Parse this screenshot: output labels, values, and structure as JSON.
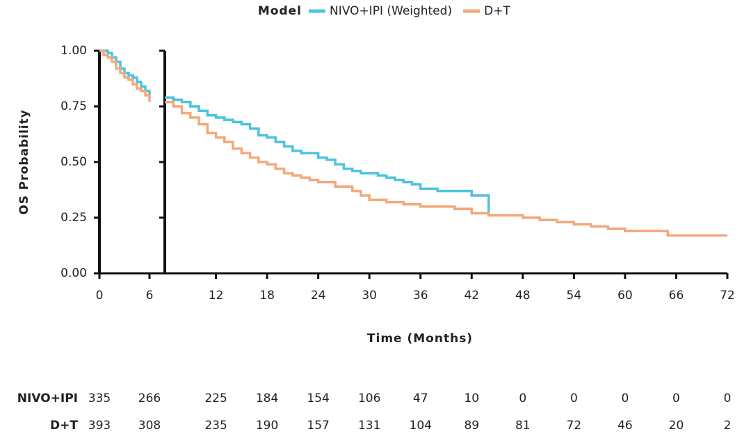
{
  "chart_data": {
    "type": "step",
    "legend_title": "Model",
    "x_label": "Time (Months)",
    "y_label": "OS Probability",
    "xlim_panels": [
      [
        0,
        6
      ],
      [
        6,
        72
      ]
    ],
    "xticks": [
      0,
      6,
      12,
      18,
      24,
      30,
      36,
      42,
      48,
      54,
      60,
      66,
      72
    ],
    "ylim": [
      0,
      1
    ],
    "yticks": [
      {
        "value": 0,
        "label": "0.00"
      },
      {
        "value": 0.25,
        "label": "0.25"
      },
      {
        "value": 0.5,
        "label": "0.50"
      },
      {
        "value": 0.75,
        "label": "0.75"
      },
      {
        "value": 1,
        "label": "1.00"
      }
    ],
    "series": [
      {
        "name": "NIVO+IPI (Weighted)",
        "color": "#4ec3df",
        "x": [
          0,
          0.5,
          1,
          1.5,
          2,
          2.5,
          3,
          3.5,
          4,
          4.5,
          5,
          5.5,
          6,
          7,
          8,
          9,
          10,
          11,
          12,
          13,
          14,
          15,
          16,
          17,
          18,
          19,
          20,
          21,
          22,
          24,
          25,
          26,
          27,
          28,
          29,
          31,
          32,
          33,
          34,
          35,
          36,
          38,
          42,
          44,
          48
        ],
        "values": [
          1.0,
          1.0,
          0.99,
          0.97,
          0.95,
          0.92,
          0.9,
          0.89,
          0.88,
          0.86,
          0.84,
          0.82,
          0.79,
          0.78,
          0.77,
          0.75,
          0.73,
          0.71,
          0.7,
          0.69,
          0.68,
          0.67,
          0.65,
          0.62,
          0.61,
          0.59,
          0.57,
          0.55,
          0.54,
          0.52,
          0.51,
          0.49,
          0.47,
          0.46,
          0.45,
          0.44,
          0.43,
          0.42,
          0.41,
          0.4,
          0.38,
          0.37,
          0.35,
          0.26,
          0.26
        ]
      },
      {
        "name": "D+T",
        "color": "#f3a97b",
        "x": [
          0,
          0.5,
          1,
          1.5,
          2,
          2.5,
          3,
          3.5,
          4,
          4.5,
          5,
          5.5,
          6,
          7,
          8,
          9,
          10,
          11,
          12,
          13,
          14,
          15,
          16,
          17,
          18,
          19,
          20,
          21,
          22,
          23,
          24,
          26,
          28,
          29,
          30,
          32,
          34,
          36,
          40,
          42,
          44,
          48,
          50,
          52,
          54,
          56,
          58,
          60,
          65,
          72
        ],
        "values": [
          1.0,
          0.98,
          0.97,
          0.95,
          0.92,
          0.9,
          0.88,
          0.87,
          0.85,
          0.83,
          0.82,
          0.8,
          0.77,
          0.75,
          0.72,
          0.7,
          0.67,
          0.63,
          0.61,
          0.59,
          0.56,
          0.54,
          0.52,
          0.5,
          0.49,
          0.47,
          0.45,
          0.44,
          0.43,
          0.42,
          0.41,
          0.39,
          0.37,
          0.35,
          0.33,
          0.32,
          0.31,
          0.3,
          0.29,
          0.27,
          0.26,
          0.25,
          0.24,
          0.23,
          0.22,
          0.21,
          0.2,
          0.19,
          0.17,
          0.17
        ]
      }
    ],
    "risk_table": [
      {
        "name": "NIVO+IPI",
        "color": "#4ec3df",
        "values": [
          335,
          266,
          225,
          184,
          154,
          106,
          47,
          10,
          0,
          0,
          0,
          0,
          0
        ]
      },
      {
        "name": "D+T",
        "color": "#f3a97b",
        "values": [
          393,
          308,
          235,
          190,
          157,
          131,
          104,
          89,
          81,
          72,
          46,
          20,
          2
        ]
      }
    ]
  }
}
